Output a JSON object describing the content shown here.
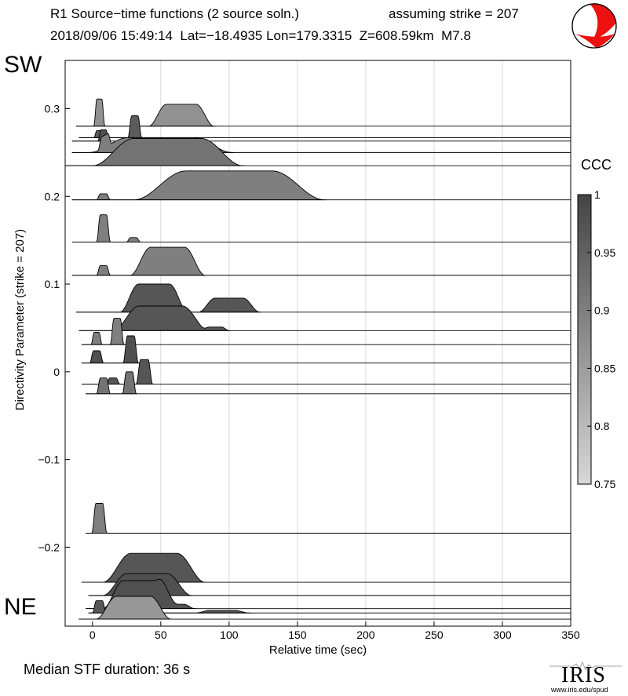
{
  "header": {
    "title_line1": "R1 Source−time functions (2 source soln.)",
    "strike_text": "assuming strike = 207",
    "title_line2": "2018/09/06 15:49:14  Lat=−18.4935 Lon=179.3315  Z=608.59km  M7.8"
  },
  "labels": {
    "top": "SW",
    "bottom": "NE",
    "median": "Median STF duration: 36 s",
    "colorbar_title": "CCC",
    "logo_text": "IRIS",
    "logo_url": "www.iris.edu/spud"
  },
  "colors": {
    "beachball_fill": "#ee1111",
    "low_ccc": "#d8d8d8",
    "high_ccc": "#444444"
  },
  "chart_data": {
    "type": "ridgeline",
    "title": "R1 Source−time functions (2 source soln.)",
    "xlabel": "Relative time (sec)",
    "ylabel": "Directivity Parameter (strike = 207)",
    "xlim": [
      -20,
      350
    ],
    "ylim": [
      -0.29,
      0.355
    ],
    "xticks": [
      0,
      50,
      100,
      150,
      200,
      250,
      300,
      350
    ],
    "yticks": [
      -0.2,
      -0.1,
      0,
      0.1,
      0.2,
      0.3
    ],
    "ytick_labels": [
      "−0.2",
      "−0.1",
      "0",
      "0.1",
      "0.2",
      "0.3"
    ],
    "colorbar": {
      "label": "CCC",
      "range": [
        0.75,
        1.0
      ],
      "ticks": [
        0.75,
        0.8,
        0.85,
        0.9,
        0.95,
        1.0
      ],
      "tick_labels": [
        "0.75",
        "0.8",
        "0.85",
        "0.9",
        "0.95",
        "1"
      ]
    },
    "traces": [
      {
        "y": 0.28,
        "t0": -12,
        "ccc": 0.87,
        "peaks": [
          {
            "c": 5,
            "w": 8,
            "h": 0.031
          },
          {
            "c": 65,
            "w": 48,
            "h": 0.025
          }
        ]
      },
      {
        "y": 0.267,
        "t0": -10,
        "ccc": 0.96,
        "peaks": [
          {
            "c": 5,
            "w": 8,
            "h": 0.008
          },
          {
            "c": 31,
            "w": 10,
            "h": 0.025
          }
        ]
      },
      {
        "y": 0.263,
        "t0": -15,
        "ccc": 0.98,
        "peaks": [
          {
            "c": 8,
            "w": 8,
            "h": 0.013
          }
        ]
      },
      {
        "y": 0.25,
        "t0": -15,
        "ccc": 0.9,
        "peaks": [
          {
            "c": 9,
            "w": 10,
            "h": 0.014
          },
          {
            "c": 50,
            "w": 105,
            "h": 0.017
          }
        ]
      },
      {
        "y": 0.235,
        "t0": -20,
        "ccc": 0.92,
        "peaks": [
          {
            "c": 55,
            "w": 110,
            "h": 0.031
          }
        ]
      },
      {
        "y": 0.196,
        "t0": -15,
        "ccc": 0.9,
        "peaks": [
          {
            "c": 8,
            "w": 10,
            "h": 0.007
          },
          {
            "c": 100,
            "w": 140,
            "h": 0.033
          }
        ]
      },
      {
        "y": 0.148,
        "t0": -15,
        "ccc": 0.9,
        "peaks": [
          {
            "c": 8,
            "w": 10,
            "h": 0.031
          },
          {
            "c": 30,
            "w": 10,
            "h": 0.005
          }
        ]
      },
      {
        "y": 0.11,
        "t0": -15,
        "ccc": 0.9,
        "peaks": [
          {
            "c": 8,
            "w": 10,
            "h": 0.011
          },
          {
            "c": 55,
            "w": 55,
            "h": 0.032
          }
        ]
      },
      {
        "y": 0.068,
        "t0": -12,
        "ccc": 0.97,
        "peaks": [
          {
            "c": 45,
            "w": 50,
            "h": 0.032
          },
          {
            "c": 100,
            "w": 45,
            "h": 0.016
          }
        ]
      },
      {
        "y": 0.047,
        "t0": -10,
        "ccc": 0.97,
        "peaks": [
          {
            "c": 50,
            "w": 70,
            "h": 0.028
          },
          {
            "c": 90,
            "w": 20,
            "h": 0.004
          }
        ]
      },
      {
        "y": 0.031,
        "t0": -8,
        "ccc": 0.9,
        "peaks": [
          {
            "c": 3,
            "w": 8,
            "h": 0.014
          },
          {
            "c": 18,
            "w": 10,
            "h": 0.03
          }
        ]
      },
      {
        "y": 0.01,
        "t0": -8,
        "ccc": 0.98,
        "peaks": [
          {
            "c": 3,
            "w": 10,
            "h": 0.014
          },
          {
            "c": 28,
            "w": 11,
            "h": 0.031
          }
        ]
      },
      {
        "y": -0.014,
        "t0": -8,
        "ccc": 0.97,
        "peaks": [
          {
            "c": 15,
            "w": 10,
            "h": 0.007
          },
          {
            "c": 38,
            "w": 12,
            "h": 0.028
          }
        ]
      },
      {
        "y": -0.025,
        "t0": -5,
        "ccc": 0.92,
        "peaks": [
          {
            "c": 8,
            "w": 10,
            "h": 0.018
          },
          {
            "c": 27,
            "w": 10,
            "h": 0.025
          }
        ]
      },
      {
        "y": -0.184,
        "t0": -5,
        "ccc": 0.9,
        "peaks": [
          {
            "c": 5,
            "w": 11,
            "h": 0.034
          }
        ]
      },
      {
        "y": -0.24,
        "t0": -8,
        "ccc": 0.97,
        "peaks": [
          {
            "c": 45,
            "w": 75,
            "h": 0.033
          }
        ]
      },
      {
        "y": -0.255,
        "t0": -3,
        "ccc": 0.98,
        "peaks": [
          {
            "c": 40,
            "w": 65,
            "h": 0.025
          }
        ]
      },
      {
        "y": -0.27,
        "t0": -5,
        "ccc": 0.98,
        "peaks": [
          {
            "c": 35,
            "w": 55,
            "h": 0.032
          },
          {
            "c": 60,
            "w": 30,
            "h": 0.005
          }
        ]
      },
      {
        "y": -0.275,
        "t0": -3,
        "ccc": 0.97,
        "peaks": [
          {
            "c": 5,
            "w": 10,
            "h": 0.014
          },
          {
            "c": 95,
            "w": 40,
            "h": 0.003
          }
        ]
      },
      {
        "y": -0.282,
        "t0": -10,
        "ccc": 0.86,
        "peaks": [
          {
            "c": 30,
            "w": 55,
            "h": 0.026
          }
        ]
      }
    ]
  }
}
